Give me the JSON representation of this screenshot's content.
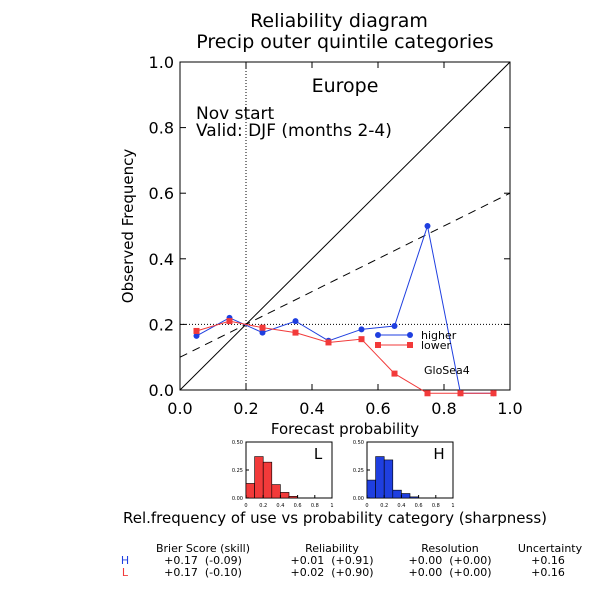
{
  "colors": {
    "higher": "#1f3fe0",
    "lower": "#f23a3a",
    "axis": "#000000",
    "background": "#ffffff"
  },
  "header": {
    "title": "Reliability diagram",
    "subtitle": "Precip outer quintile categories"
  },
  "annotations": {
    "region": "Europe",
    "start": "Nov start",
    "valid": "Valid: DJF (months 2-4)",
    "model": "GloSea4",
    "legend_higher": "higher",
    "legend_lower": "lower"
  },
  "chart_data": [
    {
      "type": "line",
      "title": "Reliability diagram",
      "subtitle": "Precip outer quintile categories",
      "xlabel": "Forecast probability",
      "ylabel": "Observed Frequency",
      "xlim": [
        0,
        1
      ],
      "ylim": [
        0,
        1
      ],
      "x_ticks": [
        "0.0",
        "0.2",
        "0.4",
        "0.6",
        "0.8",
        "1.0"
      ],
      "y_ticks": [
        "0.0",
        "0.2",
        "0.4",
        "0.6",
        "0.8",
        "1.0"
      ],
      "climatology": 0.2,
      "diagonal": [
        [
          0,
          0
        ],
        [
          1,
          1
        ]
      ],
      "no_skill_line": [
        [
          0,
          0.1
        ],
        [
          1,
          0.6
        ]
      ],
      "legend_placement": "center-right",
      "series": [
        {
          "name": "higher",
          "color": "#1f3fe0",
          "marker": "circle",
          "x": [
            0.05,
            0.15,
            0.25,
            0.35,
            0.45,
            0.55,
            0.65,
            0.75,
            0.85,
            0.95
          ],
          "y": [
            0.165,
            0.22,
            0.175,
            0.21,
            0.15,
            0.185,
            0.195,
            0.5,
            -0.01,
            -0.01
          ]
        },
        {
          "name": "lower",
          "color": "#f23a3a",
          "marker": "square",
          "x": [
            0.05,
            0.15,
            0.25,
            0.35,
            0.45,
            0.55,
            0.65,
            0.75,
            0.85,
            0.95
          ],
          "y": [
            0.18,
            0.21,
            0.19,
            0.175,
            0.145,
            0.155,
            0.05,
            -0.01,
            -0.01,
            -0.01
          ]
        }
      ]
    },
    {
      "type": "bar",
      "panel_label": "L",
      "color": "#f23a3a",
      "ylim": [
        0,
        0.5
      ],
      "y_ticks": [
        "0.50",
        "0.25",
        "0.00"
      ],
      "x_ticks": [
        "0",
        "0.2",
        "0.4",
        "0.6",
        "0.8",
        "1"
      ],
      "categories": [
        "0.0-0.1",
        "0.1-0.2",
        "0.2-0.3",
        "0.3-0.4",
        "0.4-0.5",
        "0.5-0.6",
        "0.6-0.7",
        "0.7-0.8",
        "0.8-0.9",
        "0.9-1.0"
      ],
      "values": [
        0.13,
        0.37,
        0.32,
        0.12,
        0.05,
        0.015,
        0,
        0,
        0,
        0
      ]
    },
    {
      "type": "bar",
      "panel_label": "H",
      "color": "#1f3fe0",
      "ylim": [
        0,
        0.5
      ],
      "y_ticks": [
        "0.50",
        "0.25",
        "0.00"
      ],
      "x_ticks": [
        "0",
        "0.2",
        "0.4",
        "0.6",
        "0.8",
        "1"
      ],
      "categories": [
        "0.0-0.1",
        "0.1-0.2",
        "0.2-0.3",
        "0.3-0.4",
        "0.4-0.5",
        "0.5-0.6",
        "0.6-0.7",
        "0.7-0.8",
        "0.8-0.9",
        "0.9-1.0"
      ],
      "values": [
        0.16,
        0.37,
        0.34,
        0.07,
        0.04,
        0.01,
        0,
        0,
        0,
        0
      ]
    }
  ],
  "sharpness_caption": "Rel.frequency of use vs probability category (sharpness)",
  "scores": {
    "headers": [
      "Brier Score (skill)",
      "Reliability",
      "Resolution",
      "Uncertainty"
    ],
    "rows": [
      {
        "label": "H",
        "color": "#1f3fe0",
        "values": [
          "+0.17  (-0.09)",
          "+0.01  (+0.91)",
          "+0.00  (+0.00)",
          "+0.16"
        ]
      },
      {
        "label": "L",
        "color": "#f23a3a",
        "values": [
          "+0.17  (-0.10)",
          "+0.02  (+0.90)",
          "+0.00  (+0.00)",
          "+0.16"
        ]
      }
    ]
  }
}
